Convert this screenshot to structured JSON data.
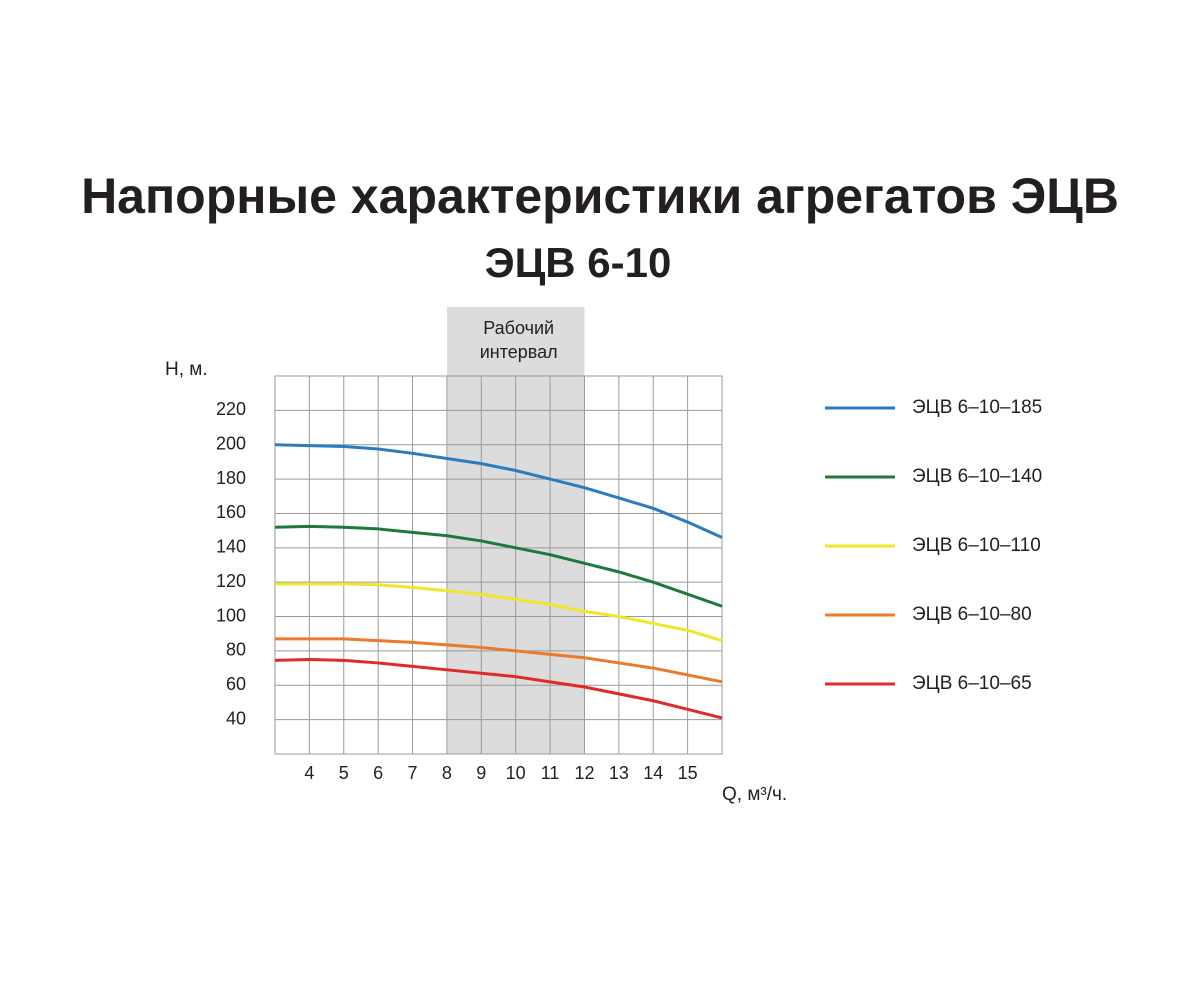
{
  "chart_data": {
    "type": "line",
    "title": "Напорные характеристики агрегатов ЭЦВ",
    "subtitle": "ЭЦВ 6-10",
    "x_label": "Q, м³/ч.",
    "y_label": "H, м.",
    "x": [
      3,
      4,
      5,
      6,
      7,
      8,
      9,
      10,
      11,
      12,
      13,
      14,
      15,
      16
    ],
    "xlim": [
      3,
      16
    ],
    "xticks": [
      4,
      5,
      6,
      7,
      8,
      9,
      10,
      11,
      12,
      13,
      14,
      15
    ],
    "ylim": [
      20,
      240
    ],
    "yticks": [
      40,
      60,
      80,
      100,
      120,
      140,
      160,
      180,
      200,
      220
    ],
    "grid": true,
    "legend": "right",
    "annotation": {
      "lines": [
        "Рабочий",
        "интервал"
      ],
      "range": [
        8,
        12
      ],
      "color": "#dcdcdc"
    },
    "series": [
      {
        "name": "ЭЦВ 6–10–185",
        "color": "#2b7bbf",
        "values": [
          200,
          199.5,
          199,
          197.5,
          195,
          192,
          189,
          185,
          180,
          175,
          169,
          163,
          155,
          146
        ]
      },
      {
        "name": "ЭЦВ 6–10–140",
        "color": "#1e7a3a",
        "values": [
          152,
          152.5,
          152,
          151,
          149,
          147,
          144,
          140,
          136,
          131,
          126,
          120,
          113,
          106
        ]
      },
      {
        "name": "ЭЦВ 6–10–110",
        "color": "#f0e62a",
        "values": [
          119,
          119,
          119,
          118.5,
          117,
          115,
          113,
          110,
          107,
          103,
          100,
          96,
          92,
          86
        ]
      },
      {
        "name": "ЭЦВ 6–10–80",
        "color": "#ec7a2a",
        "values": [
          87,
          87,
          87,
          86,
          85,
          83.5,
          82,
          80,
          78,
          76,
          73,
          70,
          66,
          62
        ]
      },
      {
        "name": "ЭЦВ 6–10–65",
        "color": "#e02a2a",
        "values": [
          74.5,
          75,
          74.5,
          73,
          71,
          69,
          67,
          65,
          62,
          59,
          55,
          51,
          46,
          41
        ]
      }
    ]
  }
}
